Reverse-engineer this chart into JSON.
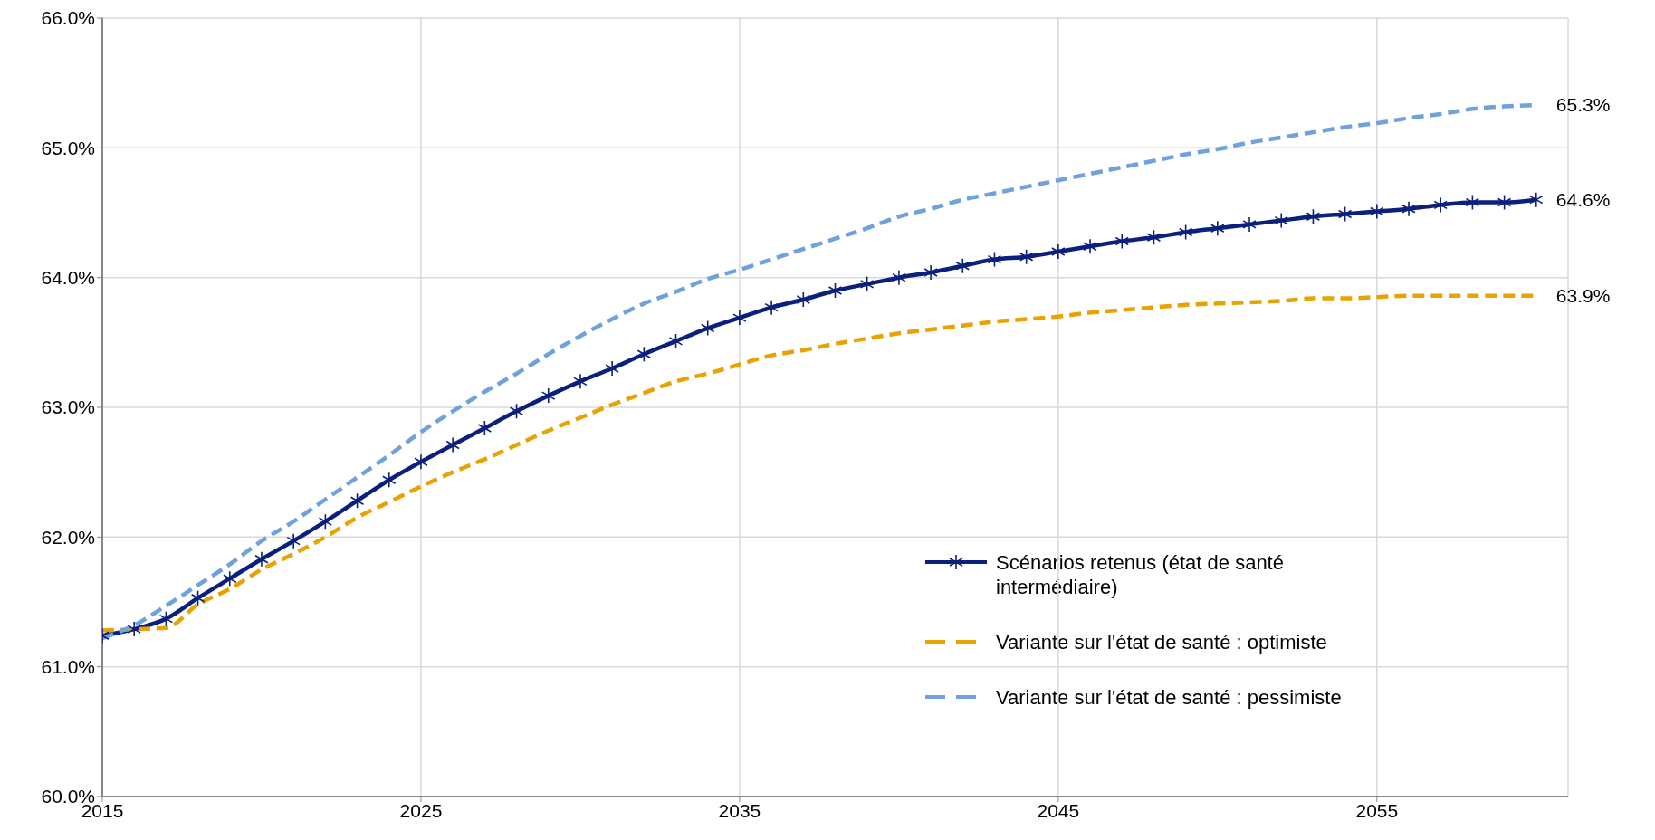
{
  "chart_data": {
    "type": "line",
    "x": [
      2015,
      2016,
      2017,
      2018,
      2019,
      2020,
      2021,
      2022,
      2023,
      2024,
      2025,
      2026,
      2027,
      2028,
      2029,
      2030,
      2031,
      2032,
      2033,
      2034,
      2035,
      2036,
      2037,
      2038,
      2039,
      2040,
      2041,
      2042,
      2043,
      2044,
      2045,
      2046,
      2047,
      2048,
      2049,
      2050,
      2051,
      2052,
      2053,
      2054,
      2055,
      2056,
      2057,
      2058,
      2059,
      2060
    ],
    "series": [
      {
        "name": "Scénarios retenus (état de santé intermédiaire)",
        "color": "#0b1f7c",
        "line_style": "solid",
        "marker": "cross",
        "values": [
          61.24,
          61.29,
          61.37,
          61.53,
          61.68,
          61.83,
          61.97,
          62.12,
          62.28,
          62.44,
          62.58,
          62.71,
          62.84,
          62.97,
          63.09,
          63.2,
          63.3,
          63.41,
          63.51,
          63.61,
          63.69,
          63.77,
          63.83,
          63.9,
          63.95,
          64.0,
          64.04,
          64.09,
          64.14,
          64.16,
          64.2,
          64.24,
          64.28,
          64.31,
          64.35,
          64.38,
          64.41,
          64.44,
          64.47,
          64.49,
          64.51,
          64.53,
          64.56,
          64.58,
          64.58,
          64.6
        ],
        "value_labels": [
          null,
          null,
          null,
          null,
          null,
          null,
          null,
          null,
          null,
          null,
          null,
          null,
          null,
          null,
          null,
          null,
          null,
          null,
          null,
          null,
          null,
          null,
          null,
          null,
          null,
          null,
          null,
          null,
          null,
          null,
          null,
          null,
          null,
          null,
          null,
          null,
          null,
          null,
          null,
          null,
          null,
          null,
          null,
          null,
          null,
          "64.6%"
        ]
      },
      {
        "name": "Variante sur l'état de santé : optimiste",
        "color": "#e8a202",
        "line_style": "dashed",
        "marker": "none",
        "values": [
          61.28,
          61.29,
          61.3,
          61.48,
          61.6,
          61.75,
          61.87,
          62.0,
          62.15,
          62.27,
          62.39,
          62.5,
          62.6,
          62.71,
          62.82,
          62.92,
          63.02,
          63.11,
          63.2,
          63.26,
          63.33,
          63.4,
          63.44,
          63.49,
          63.53,
          63.57,
          63.6,
          63.63,
          63.66,
          63.68,
          63.7,
          63.73,
          63.75,
          63.77,
          63.79,
          63.8,
          63.81,
          63.82,
          63.84,
          63.84,
          63.85,
          63.86,
          63.86,
          63.86,
          63.86,
          63.86
        ],
        "value_labels": [
          null,
          null,
          null,
          null,
          null,
          null,
          null,
          null,
          null,
          null,
          null,
          null,
          null,
          null,
          null,
          null,
          null,
          null,
          null,
          null,
          null,
          null,
          null,
          null,
          null,
          null,
          null,
          null,
          null,
          null,
          null,
          null,
          null,
          null,
          null,
          null,
          null,
          null,
          null,
          null,
          null,
          null,
          null,
          null,
          null,
          "63.9%"
        ]
      },
      {
        "name": "Variante sur l'état de santé : pessimiste",
        "color": "#6fa1dc",
        "line_style": "dashed",
        "marker": "none",
        "values": [
          61.22,
          61.32,
          61.47,
          61.63,
          61.79,
          61.97,
          62.12,
          62.29,
          62.46,
          62.63,
          62.81,
          62.97,
          63.12,
          63.26,
          63.41,
          63.55,
          63.68,
          63.8,
          63.89,
          63.99,
          64.06,
          64.14,
          64.22,
          64.3,
          64.38,
          64.47,
          64.53,
          64.6,
          64.65,
          64.7,
          64.75,
          64.8,
          64.85,
          64.9,
          64.95,
          64.99,
          65.04,
          65.08,
          65.12,
          65.16,
          65.19,
          65.23,
          65.26,
          65.3,
          65.32,
          65.33
        ],
        "value_labels": [
          null,
          null,
          null,
          null,
          null,
          null,
          null,
          null,
          null,
          null,
          null,
          null,
          null,
          null,
          null,
          null,
          null,
          null,
          null,
          null,
          null,
          null,
          null,
          null,
          null,
          null,
          null,
          null,
          null,
          null,
          null,
          null,
          null,
          null,
          null,
          null,
          null,
          null,
          null,
          null,
          null,
          null,
          null,
          null,
          null,
          "65.3%"
        ]
      }
    ],
    "xlim": [
      2015,
      2061
    ],
    "xticks": [
      2015,
      2025,
      2035,
      2045,
      2055
    ],
    "ylim": [
      60,
      66
    ],
    "yticks": [
      {
        "value": 60,
        "label": "60.0%"
      },
      {
        "value": 61,
        "label": "61.0%"
      },
      {
        "value": 62,
        "label": "62.0%"
      },
      {
        "value": 63,
        "label": "63.0%"
      },
      {
        "value": 64,
        "label": "64.0%"
      },
      {
        "value": 65,
        "label": "65.0%"
      },
      {
        "value": 66,
        "label": "66.0%"
      }
    ],
    "grid": true,
    "legend": "bottom right"
  }
}
